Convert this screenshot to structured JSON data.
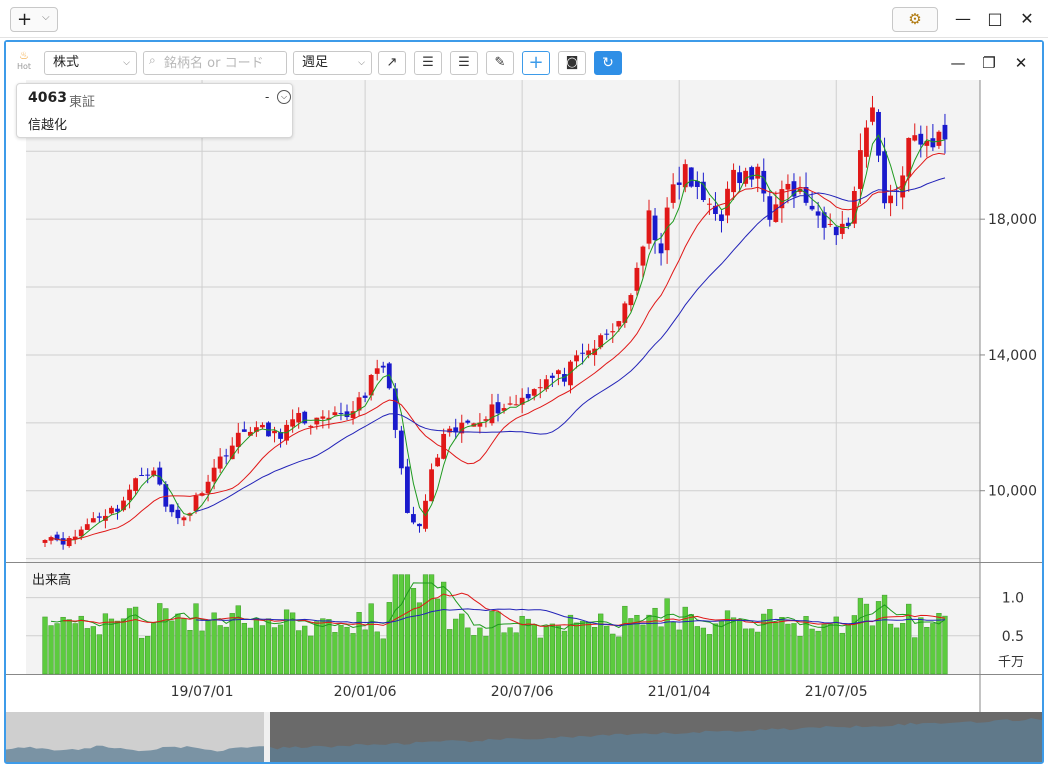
{
  "titlebar": {
    "add_label": "+",
    "win_min": "—",
    "win_restore": "□",
    "win_close": "✕"
  },
  "toolbar": {
    "hot_label": "Hot",
    "type_select": "株式",
    "search_placeholder": "銘柄名 or コード",
    "period_select": "週足",
    "panel_min": "—",
    "panel_restore": "❐",
    "panel_close": "✕"
  },
  "info": {
    "code": "4063",
    "market": "東証",
    "name": "信越化",
    "dash": "-"
  },
  "colors": {
    "up": "#e01818",
    "down": "#1a1acc",
    "ma_short": "#1f9a1f",
    "ma_mid": "#e01818",
    "ma_long": "#2323b8",
    "volume": "#5ccb3e",
    "accent": "#3d9be9"
  },
  "chart_data": {
    "type": "candlestick",
    "price_ticks": [
      "10,000",
      "14,000",
      "18,000"
    ],
    "price_tick_values": [
      10000,
      14000,
      18000
    ],
    "ylim": [
      7900,
      22100
    ],
    "date_ticks": [
      "19/07/01",
      "20/01/06",
      "20/07/06",
      "21/01/04",
      "21/07/05"
    ],
    "date_tick_weeks": [
      26,
      53,
      79,
      105,
      131
    ],
    "volume_label": "出来高",
    "volume_ticks": [
      "1.0",
      "0.5"
    ],
    "volume_tick_values": [
      1.0,
      0.5
    ],
    "volume_unit": "千万",
    "volume_ylim": [
      0,
      1.4
    ],
    "weeks": 150,
    "anchors": [
      [
        0,
        8700
      ],
      [
        4,
        8500
      ],
      [
        8,
        9200
      ],
      [
        12,
        9500
      ],
      [
        16,
        10500
      ],
      [
        18,
        10700
      ],
      [
        20,
        9500
      ],
      [
        22,
        9200
      ],
      [
        24,
        9400
      ],
      [
        26,
        10100
      ],
      [
        30,
        11200
      ],
      [
        34,
        11900
      ],
      [
        38,
        11600
      ],
      [
        42,
        12100
      ],
      [
        46,
        12000
      ],
      [
        50,
        12200
      ],
      [
        56,
        13700
      ],
      [
        58,
        12000
      ],
      [
        60,
        9200
      ],
      [
        62,
        8900
      ],
      [
        64,
        10500
      ],
      [
        66,
        11500
      ],
      [
        70,
        12000
      ],
      [
        74,
        12400
      ],
      [
        78,
        12600
      ],
      [
        82,
        13200
      ],
      [
        86,
        13400
      ],
      [
        90,
        14100
      ],
      [
        94,
        14700
      ],
      [
        98,
        16300
      ],
      [
        100,
        18000
      ],
      [
        102,
        17200
      ],
      [
        104,
        18900
      ],
      [
        106,
        19400
      ],
      [
        108,
        18700
      ],
      [
        112,
        18200
      ],
      [
        114,
        19200
      ],
      [
        118,
        19300
      ],
      [
        120,
        18300
      ],
      [
        122,
        19200
      ],
      [
        124,
        18800
      ],
      [
        126,
        18600
      ],
      [
        128,
        17800
      ],
      [
        130,
        17700
      ],
      [
        133,
        17800
      ],
      [
        135,
        20200
      ],
      [
        137,
        21200
      ],
      [
        139,
        18600
      ],
      [
        141,
        18800
      ],
      [
        143,
        20300
      ],
      [
        145,
        20200
      ],
      [
        150,
        20500
      ]
    ]
  }
}
